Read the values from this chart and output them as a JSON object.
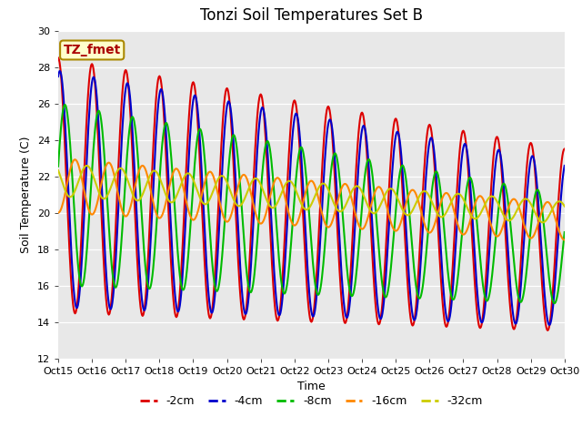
{
  "title": "Tonzi Soil Temperatures Set B",
  "xlabel": "Time",
  "ylabel": "Soil Temperature (C)",
  "xlim": [
    0,
    360
  ],
  "ylim": [
    12,
    30
  ],
  "yticks": [
    12,
    14,
    16,
    18,
    20,
    22,
    24,
    26,
    28,
    30
  ],
  "xtick_labels": [
    "Oct 15",
    "Oct 16",
    "Oct 17",
    "Oct 18",
    "Oct 19",
    "Oct 20",
    "Oct 21",
    "Oct 22",
    "Oct 23",
    "Oct 24",
    "Oct 25",
    "Oct 26",
    "Oct 27",
    "Oct 28",
    "Oct 29",
    "Oct 30"
  ],
  "xtick_positions": [
    0,
    24,
    48,
    72,
    96,
    120,
    144,
    168,
    192,
    216,
    240,
    264,
    288,
    312,
    336,
    360
  ],
  "line_colors": [
    "#dd0000",
    "#0000cc",
    "#00bb00",
    "#ff8800",
    "#cccc00"
  ],
  "line_labels": [
    "-2cm",
    "-4cm",
    "-8cm",
    "-16cm",
    "-32cm"
  ],
  "annotation_text": "TZ_fmet",
  "annotation_color": "#aa0000",
  "annotation_bg": "#ffffcc",
  "annotation_border": "#aa8800",
  "fig_bg": "#ffffff",
  "plot_bg": "#e8e8e8",
  "title_fontsize": 12,
  "axis_fontsize": 9,
  "tick_fontsize": 8,
  "legend_fontsize": 9,
  "n_points": 721
}
